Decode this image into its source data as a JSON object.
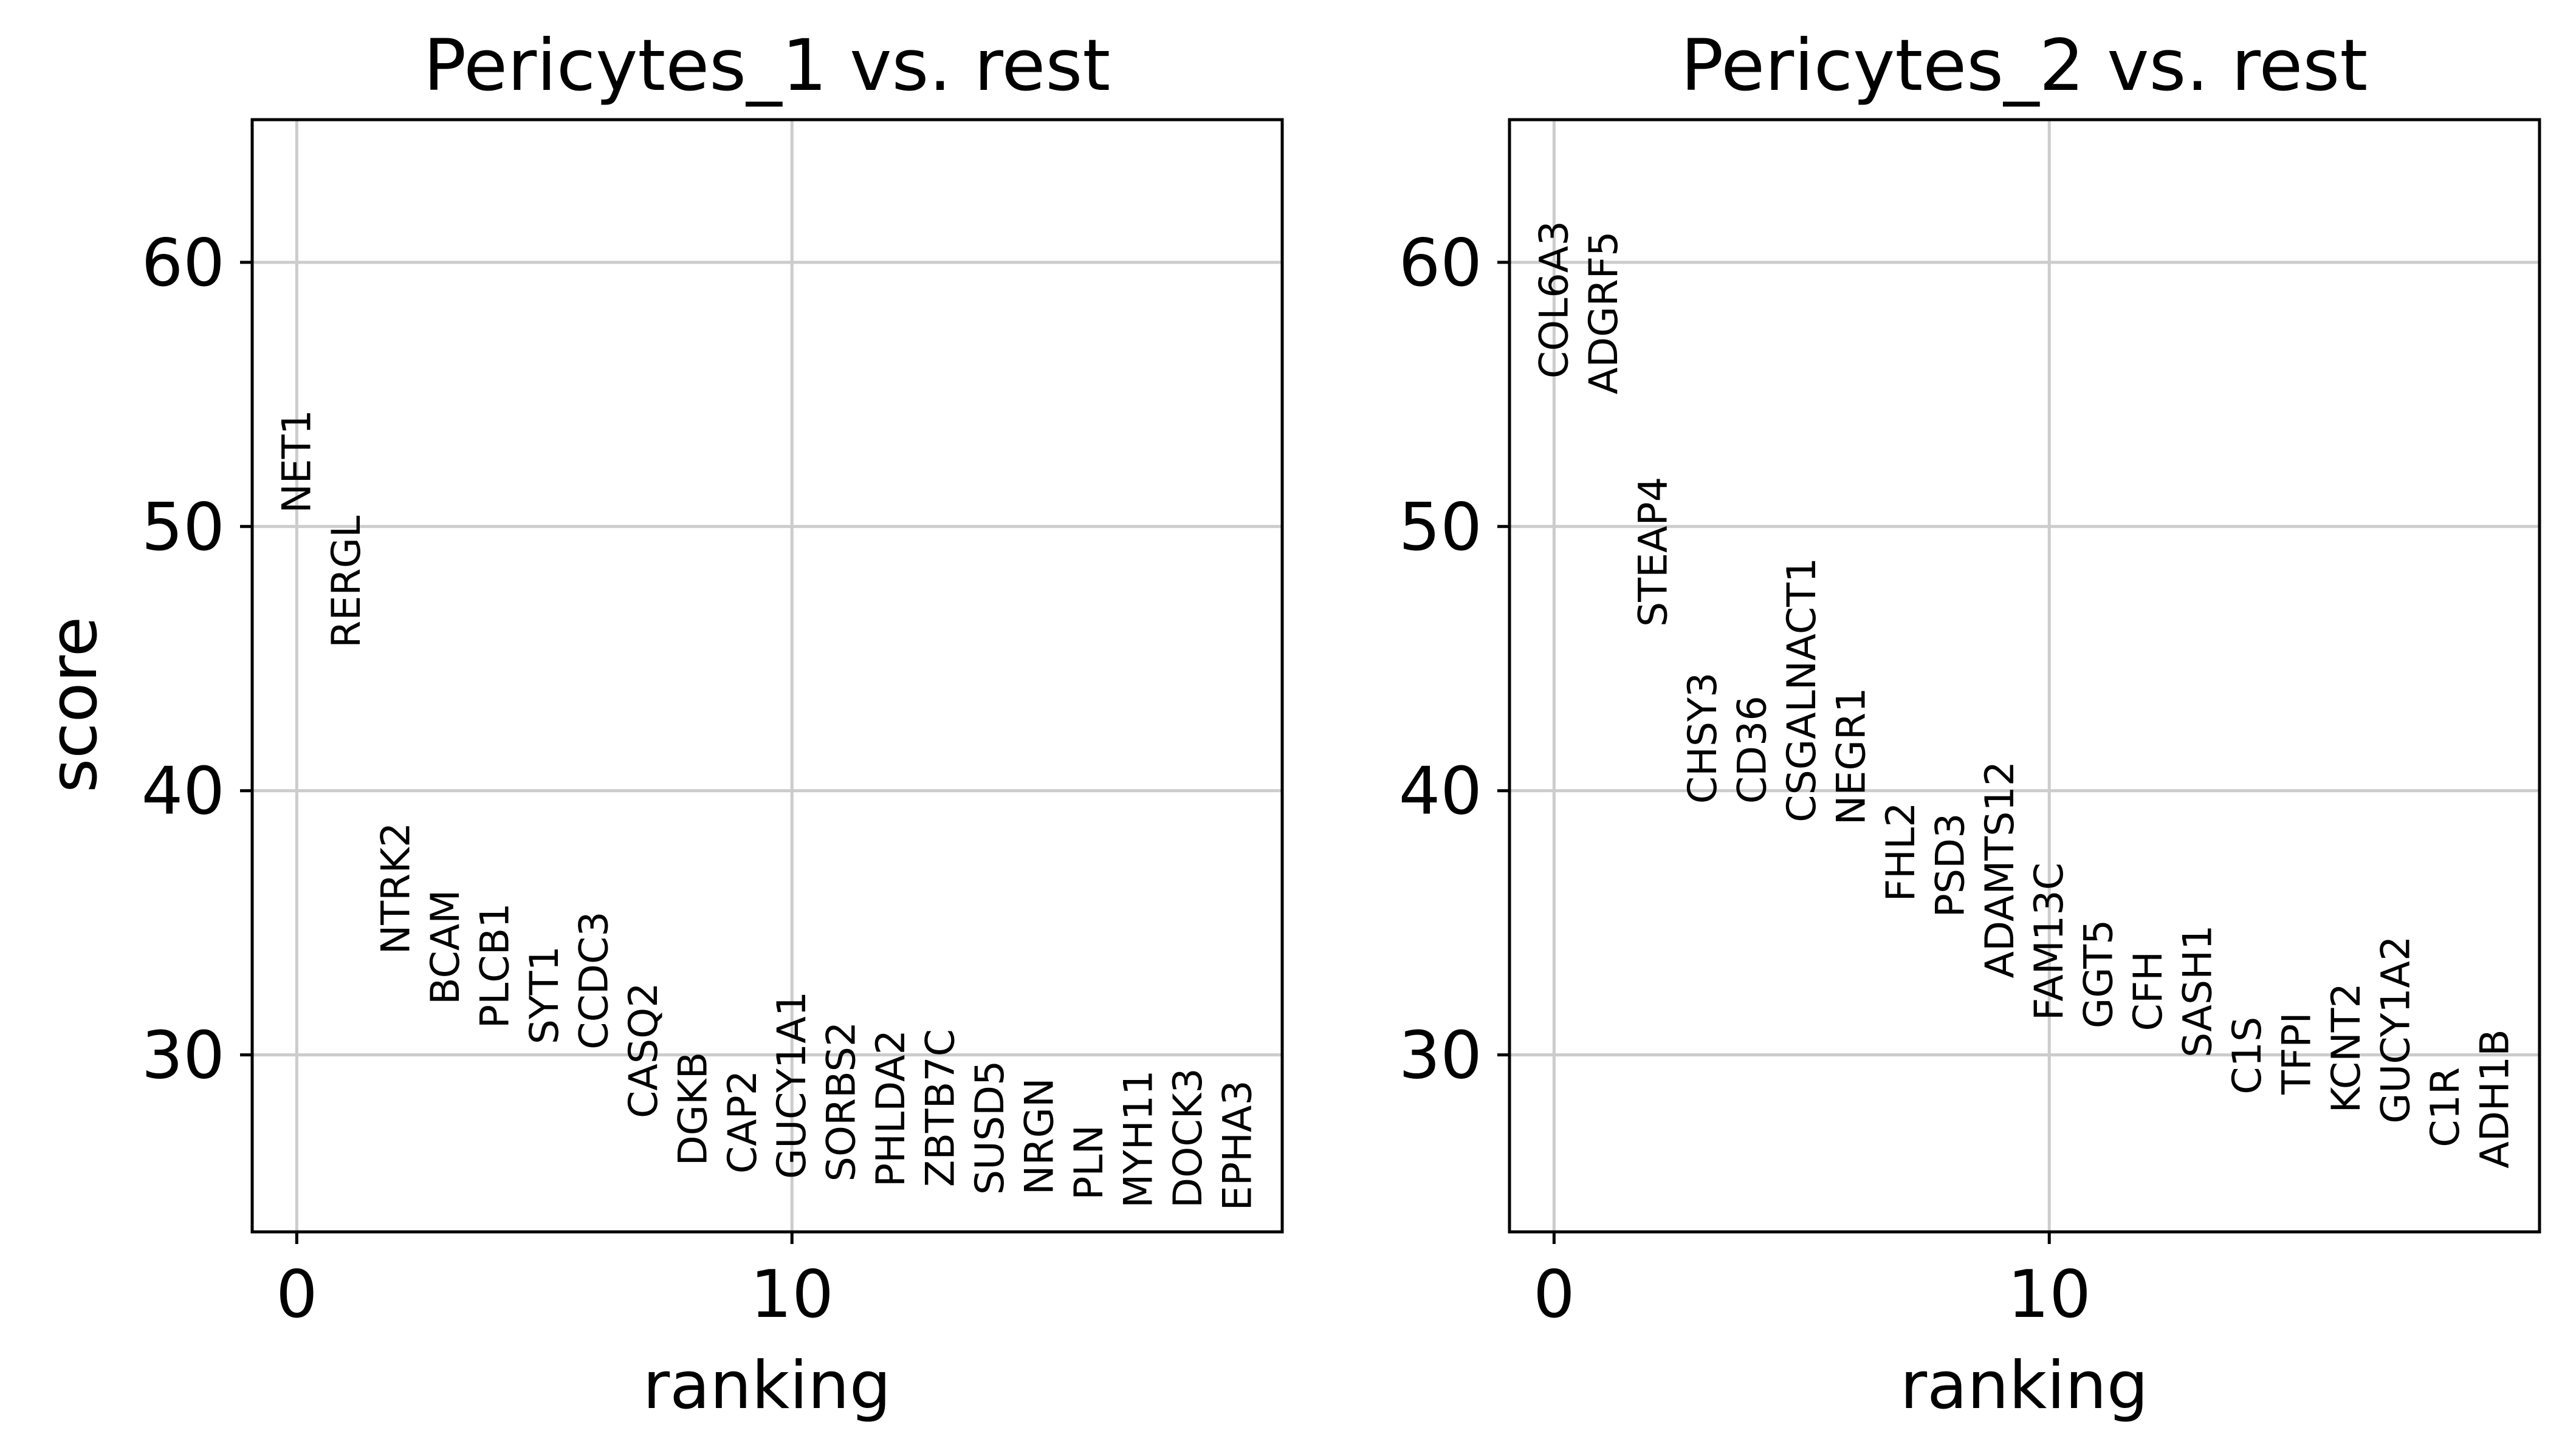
{
  "chart_data": [
    {
      "type": "scatter",
      "title": "Pericytes_1 vs. rest",
      "xlabel": "ranking",
      "ylabel": "score",
      "xlim": [
        -0.9,
        19.9
      ],
      "ylim": [
        23.3,
        65.4
      ],
      "xticks": [
        0,
        10
      ],
      "yticks": [
        30,
        40,
        50,
        60
      ],
      "grid": true,
      "genes": [
        "NET1",
        "RERGL",
        "NTRK2",
        "BCAM",
        "PLCB1",
        "SYT1",
        "CCDC3",
        "CASQ2",
        "DGKB",
        "CAP2",
        "GUCY1A1",
        "SORBS2",
        "PHLDA2",
        "ZBTB7C",
        "SUSD5",
        "NRGN",
        "PLN",
        "MYH11",
        "DOCK3",
        "EPHA3"
      ],
      "scores": [
        50.5,
        45.4,
        33.8,
        31.9,
        31.0,
        30.4,
        30.2,
        27.6,
        25.8,
        25.5,
        25.3,
        25.2,
        25.0,
        25.0,
        24.7,
        24.7,
        24.5,
        24.2,
        24.2,
        24.1
      ]
    },
    {
      "type": "scatter",
      "title": "Pericytes_2 vs. rest",
      "xlabel": "ranking",
      "ylabel": "",
      "xlim": [
        -0.9,
        19.9
      ],
      "ylim": [
        23.3,
        65.4
      ],
      "xticks": [
        0,
        10
      ],
      "yticks": [
        30,
        40,
        50,
        60
      ],
      "grid": true,
      "genes": [
        "COL6A3",
        "ADGRF5",
        "STEAP4",
        "CHSY3",
        "CD36",
        "CSGALNACT1",
        "NEGR1",
        "FHL2",
        "PSD3",
        "ADAMTS12",
        "FAM13C",
        "GGT5",
        "CFH",
        "SASH1",
        "C1S",
        "TFPI",
        "KCNT2",
        "GUCY1A2",
        "C1R",
        "ADH1B"
      ],
      "scores": [
        55.6,
        55.0,
        46.2,
        39.5,
        39.5,
        38.8,
        38.7,
        35.8,
        35.2,
        32.9,
        31.3,
        31.0,
        30.9,
        29.9,
        28.5,
        28.5,
        27.8,
        27.4,
        26.5,
        25.7
      ]
    }
  ]
}
